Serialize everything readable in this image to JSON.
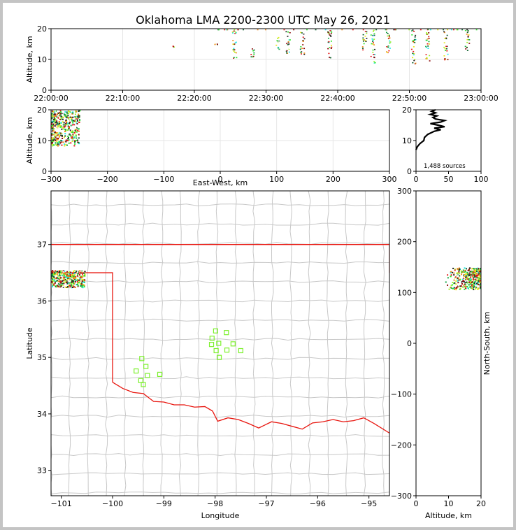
{
  "title": "Oklahoma LMA 2200-2300 UTC May 26, 2021",
  "colors": {
    "border": "#e8160f",
    "county": "#c8c8c8",
    "grid": "#e6e6e6",
    "stations": "#7df02e",
    "sources": [
      "#0b5e2a",
      "#19a84a",
      "#2ee62e",
      "#a3f02b",
      "#e6e619",
      "#f08c1c",
      "#e61a1a",
      "#8c0a0a",
      "#1e1e1e",
      "#1ee6e6",
      "#ffffff"
    ]
  },
  "source_count": "1,488 sources",
  "chart_data": [
    {
      "panel": "time-height",
      "type": "scatter",
      "xlabel": "",
      "ylabel": "Altitude, km",
      "xlim": [
        "22:00:00",
        "23:00:00"
      ],
      "ylim": [
        0,
        20
      ],
      "xticks": [
        "22:00:00",
        "22:10:00",
        "22:20:00",
        "22:30:00",
        "22:40:00",
        "22:50:00",
        "23:00:00"
      ],
      "yticks": [
        0,
        10,
        20
      ],
      "grid": true,
      "activity_bursts": [
        {
          "time": "22:16:50",
          "alt": [
            14.2,
            14.7
          ]
        },
        {
          "time": "22:23:00",
          "alt": [
            14.5,
            15.2
          ]
        },
        {
          "time": "22:25:30",
          "alt": [
            10.0,
            20.0
          ]
        },
        {
          "time": "22:28:00",
          "alt": [
            11.0,
            14.5
          ]
        },
        {
          "time": "22:31:30",
          "alt": [
            13.0,
            17.5
          ]
        },
        {
          "time": "22:33:00",
          "alt": [
            12.0,
            19.5
          ]
        },
        {
          "time": "22:35:00",
          "alt": [
            11.0,
            19.0
          ]
        },
        {
          "time": "22:38:50",
          "alt": [
            9.5,
            20.0
          ]
        },
        {
          "time": "22:43:40",
          "alt": [
            13.0,
            19.5
          ]
        },
        {
          "time": "22:44:50",
          "alt": [
            9.0,
            20.0
          ]
        },
        {
          "time": "22:47:00",
          "alt": [
            11.5,
            19.0
          ]
        },
        {
          "time": "22:50:30",
          "alt": [
            8.5,
            20.0
          ]
        },
        {
          "time": "22:52:30",
          "alt": [
            9.5,
            20.0
          ]
        },
        {
          "time": "22:55:00",
          "alt": [
            10.0,
            20.0
          ]
        },
        {
          "time": "22:58:00",
          "alt": [
            13.0,
            20.0
          ]
        }
      ]
    },
    {
      "panel": "east-west-height",
      "type": "scatter",
      "xlabel": "East-West, km",
      "ylabel": "Altitude, km",
      "xlim": [
        -300,
        300
      ],
      "ylim": [
        0,
        20
      ],
      "xticks": [
        -300,
        -200,
        -100,
        0,
        100,
        200,
        300
      ],
      "yticks": [
        0,
        10,
        20
      ],
      "grid": true,
      "cluster": {
        "x": [
          -300,
          -250
        ],
        "alt": [
          8.5,
          20
        ]
      }
    },
    {
      "panel": "altitude-histogram",
      "type": "line",
      "xlim": [
        0,
        100
      ],
      "ylim": [
        0,
        20
      ],
      "xticks": [
        0,
        50,
        100
      ],
      "yticks": [
        0,
        10,
        20
      ],
      "profile": [
        {
          "alt": 7.0,
          "count": 0
        },
        {
          "alt": 8.0,
          "count": 2
        },
        {
          "alt": 9.0,
          "count": 6
        },
        {
          "alt": 10.0,
          "count": 12
        },
        {
          "alt": 11.0,
          "count": 13
        },
        {
          "alt": 12.0,
          "count": 18
        },
        {
          "alt": 13.0,
          "count": 28
        },
        {
          "alt": 13.5,
          "count": 38
        },
        {
          "alt": 14.0,
          "count": 28
        },
        {
          "alt": 14.5,
          "count": 44
        },
        {
          "alt": 15.0,
          "count": 34
        },
        {
          "alt": 15.5,
          "count": 22
        },
        {
          "alt": 16.0,
          "count": 38
        },
        {
          "alt": 16.5,
          "count": 44
        },
        {
          "alt": 17.0,
          "count": 30
        },
        {
          "alt": 17.5,
          "count": 26
        },
        {
          "alt": 18.0,
          "count": 32
        },
        {
          "alt": 18.5,
          "count": 22
        },
        {
          "alt": 19.0,
          "count": 30
        },
        {
          "alt": 19.5,
          "count": 24
        },
        {
          "alt": 20.0,
          "count": 30
        }
      ]
    },
    {
      "panel": "plan-view",
      "type": "scatter",
      "xlabel": "Longitude",
      "ylabel": "Latitude",
      "xlim": [
        -101.2,
        -94.6
      ],
      "ylim": [
        32.55,
        37.95
      ],
      "xticks": [
        -101,
        -100,
        -99,
        -98,
        -97,
        -96,
        -95
      ],
      "yticks": [
        33,
        34,
        35,
        36,
        37
      ],
      "cluster": {
        "lon": [
          -101.2,
          -100.55
        ],
        "lat": [
          36.25,
          36.55
        ]
      },
      "stations": [
        [
          -97.99,
          35.47
        ],
        [
          -97.78,
          35.44
        ],
        [
          -98.06,
          35.34
        ],
        [
          -98.07,
          35.23
        ],
        [
          -97.93,
          35.25
        ],
        [
          -97.65,
          35.24
        ],
        [
          -97.98,
          35.12
        ],
        [
          -97.77,
          35.13
        ],
        [
          -97.5,
          35.12
        ],
        [
          -97.92,
          35.0
        ],
        [
          -99.43,
          34.98
        ],
        [
          -99.35,
          34.84
        ],
        [
          -99.54,
          34.76
        ],
        [
          -99.32,
          34.68
        ],
        [
          -99.08,
          34.7
        ],
        [
          -99.45,
          34.59
        ],
        [
          -99.4,
          34.52
        ]
      ]
    },
    {
      "panel": "north-south-height",
      "type": "scatter",
      "xlabel": "Altitude, km",
      "ylabel": "North-South, km",
      "xlim": [
        0,
        20
      ],
      "ylim": [
        -300,
        300
      ],
      "xticks": [
        0,
        10,
        20
      ],
      "yticks": [
        -300,
        -200,
        -100,
        0,
        100,
        200,
        300
      ],
      "cluster": {
        "alt": [
          8.5,
          20
        ],
        "y": [
          107,
          150
        ]
      }
    }
  ]
}
